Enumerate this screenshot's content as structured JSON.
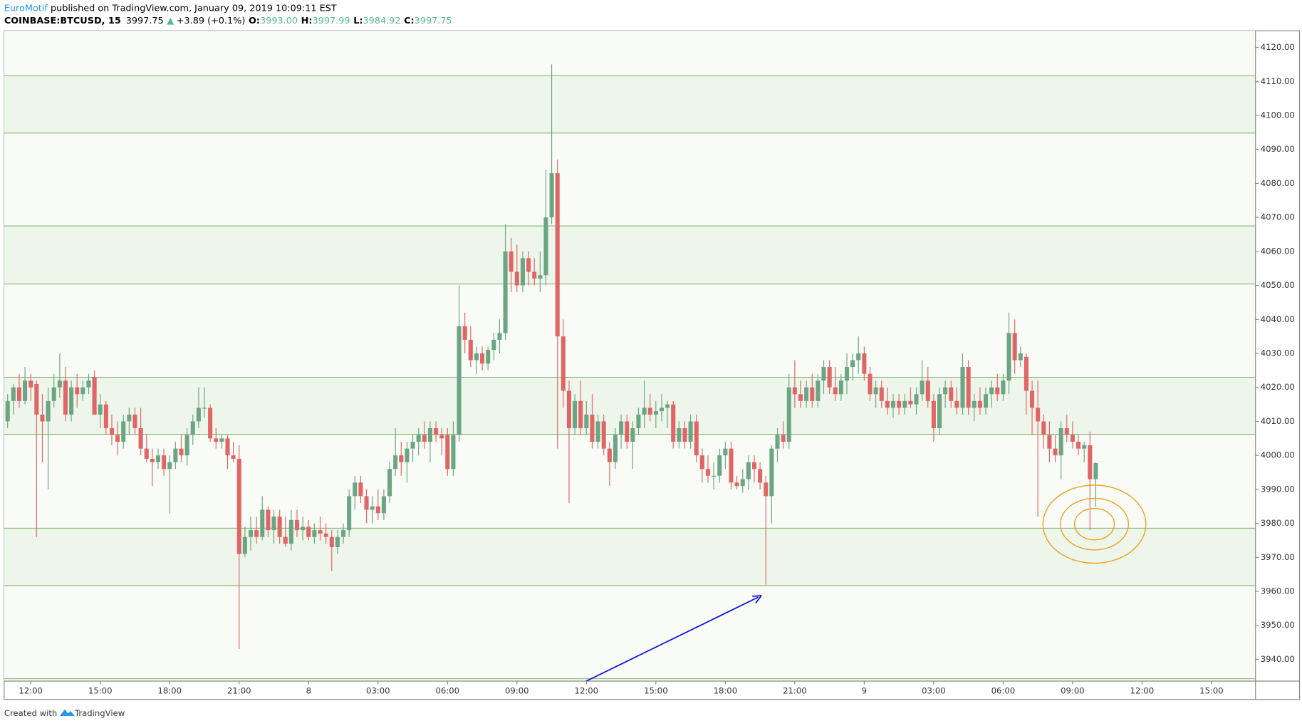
{
  "header": {
    "author": "EuroMotif",
    "published": "published on TradingView.com, January 09, 2019 10:09:11 EST",
    "symbol": "COINBASE:BTCUSD, 15",
    "last": "3997.75",
    "change": "+3.89 (+0.1%)",
    "ohlc": [
      {
        "key": "O:",
        "value": "3993.00"
      },
      {
        "key": "H:",
        "value": "3997.99"
      },
      {
        "key": "L:",
        "value": "3984.92"
      },
      {
        "key": "C:",
        "value": "3997.75"
      }
    ]
  },
  "footer": {
    "created": "Created with",
    "brand": "TradingView"
  },
  "chart_data": {
    "type": "candlestick",
    "up_color": "#6ba583",
    "down_color": "#e06666",
    "level_color": "#6aa84f",
    "zone_color": "#eef5ea",
    "xlim": [
      -0.6,
      215.6
    ],
    "ylim": [
      3933.6,
      4124.9
    ],
    "xticks": [
      {
        "value": 4,
        "label": "12:00"
      },
      {
        "value": 16,
        "label": "15:00"
      },
      {
        "value": 28,
        "label": "18:00"
      },
      {
        "value": 40,
        "label": "21:00"
      },
      {
        "value": 52,
        "label": "8"
      },
      {
        "value": 64,
        "label": "03:00"
      },
      {
        "value": 76,
        "label": "06:00"
      },
      {
        "value": 88,
        "label": "09:00"
      },
      {
        "value": 100,
        "label": "12:00"
      },
      {
        "value": 112,
        "label": "15:00"
      },
      {
        "value": 124,
        "label": "18:00"
      },
      {
        "value": 136,
        "label": "21:00"
      },
      {
        "value": 148,
        "label": "9"
      },
      {
        "value": 160,
        "label": "03:00"
      },
      {
        "value": 172,
        "label": "06:00"
      },
      {
        "value": 184,
        "label": "09:00"
      },
      {
        "value": 196,
        "label": "12:00"
      },
      {
        "value": 208,
        "label": "15:00"
      }
    ],
    "yticks": [
      {
        "value": 3940,
        "label": "3940.00"
      },
      {
        "value": 3950,
        "label": "3950.00"
      },
      {
        "value": 3960,
        "label": "3960.00"
      },
      {
        "value": 3970,
        "label": "3970.00"
      },
      {
        "value": 3980,
        "label": "3980.00"
      },
      {
        "value": 3990,
        "label": "3990.00"
      },
      {
        "value": 4000,
        "label": "4000.00"
      },
      {
        "value": 4010,
        "label": "4010.00"
      },
      {
        "value": 4020,
        "label": "4020.00"
      },
      {
        "value": 4030,
        "label": "4030.00"
      },
      {
        "value": 4040,
        "label": "4040.00"
      },
      {
        "value": 4050,
        "label": "4050.00"
      },
      {
        "value": 4060,
        "label": "4060.00"
      },
      {
        "value": 4070,
        "label": "4070.00"
      },
      {
        "value": 4080,
        "label": "4080.00"
      },
      {
        "value": 4090,
        "label": "4090.00"
      },
      {
        "value": 4100,
        "label": "4100.00"
      },
      {
        "value": 4110,
        "label": "4110.00"
      },
      {
        "value": 4120,
        "label": "4120.00"
      }
    ],
    "levels": [
      4111.7,
      4094.8,
      4067.5,
      4050.4,
      4023.0,
      4006.2,
      3978.6,
      3961.7,
      3934.3
    ],
    "ohlc": [
      [
        4010,
        4018,
        4008,
        4016
      ],
      [
        4016,
        4021,
        4012,
        4020
      ],
      [
        4020,
        4024,
        4014,
        4016
      ],
      [
        4016,
        4026,
        4015,
        4022
      ],
      [
        4022,
        4024,
        4016,
        4020
      ],
      [
        4021,
        4022,
        3976,
        4012
      ],
      [
        4012,
        4018,
        3998,
        4010
      ],
      [
        4010,
        4020,
        3990,
        4016
      ],
      [
        4016,
        4024,
        4014,
        4020
      ],
      [
        4020,
        4030,
        4017,
        4022
      ],
      [
        4022,
        4026,
        4010,
        4012
      ],
      [
        4012,
        4022,
        4010,
        4020
      ],
      [
        4020,
        4024,
        4014,
        4018
      ],
      [
        4018,
        4022,
        4016,
        4020
      ],
      [
        4020,
        4024,
        4018,
        4022
      ],
      [
        4023,
        4025,
        4012,
        4012
      ],
      [
        4012,
        4018,
        4008,
        4015
      ],
      [
        4015,
        4016,
        4006,
        4008
      ],
      [
        4008,
        4012,
        4003,
        4006
      ],
      [
        4006,
        4010,
        4000,
        4004
      ],
      [
        4004,
        4012,
        4002,
        4010
      ],
      [
        4010,
        4014,
        4006,
        4012
      ],
      [
        4012,
        4014,
        4006,
        4008
      ],
      [
        4008,
        4014,
        4000,
        4002
      ],
      [
        4002,
        4006,
        3998,
        3999
      ],
      [
        3999,
        4002,
        3991,
        3998
      ],
      [
        3998,
        4002,
        3996,
        4000
      ],
      [
        4000,
        4002,
        3994,
        3996
      ],
      [
        3996,
        4000,
        3983,
        3998
      ],
      [
        3998,
        4004,
        3996,
        4002
      ],
      [
        4002,
        4006,
        3998,
        4000
      ],
      [
        4000,
        4008,
        3997,
        4006
      ],
      [
        4006,
        4012,
        4003,
        4010
      ],
      [
        4010,
        4020,
        4008,
        4014
      ],
      [
        4014,
        4020,
        4011,
        4014
      ],
      [
        4014,
        4015,
        4004,
        4005
      ],
      [
        4005,
        4008,
        4002,
        4004
      ],
      [
        4004,
        4006,
        4002,
        4005
      ],
      [
        4005,
        4006,
        3996,
        4000
      ],
      [
        4000,
        4004,
        3998,
        3999
      ],
      [
        3999,
        4003,
        3943,
        3971
      ],
      [
        3971,
        3979,
        3970,
        3976
      ],
      [
        3976,
        3982,
        3972,
        3978
      ],
      [
        3978,
        3982,
        3974,
        3976
      ],
      [
        3976,
        3988,
        3975,
        3984
      ],
      [
        3984,
        3985,
        3976,
        3978
      ],
      [
        3978,
        3984,
        3974,
        3982
      ],
      [
        3982,
        3984,
        3974,
        3976
      ],
      [
        3976,
        3982,
        3973,
        3974
      ],
      [
        3974,
        3984,
        3972,
        3981
      ],
      [
        3981,
        3984,
        3976,
        3978
      ],
      [
        3978,
        3982,
        3975,
        3979
      ],
      [
        3979,
        3981,
        3975,
        3976
      ],
      [
        3976,
        3980,
        3974,
        3978
      ],
      [
        3978,
        3982,
        3975,
        3977
      ],
      [
        3977,
        3980,
        3974,
        3976
      ],
      [
        3976,
        3978,
        3966,
        3973
      ],
      [
        3973,
        3978,
        3971,
        3976
      ],
      [
        3976,
        3980,
        3974,
        3978
      ],
      [
        3978,
        3990,
        3976,
        3988
      ],
      [
        3988,
        3994,
        3984,
        3992
      ],
      [
        3992,
        3994,
        3986,
        3988
      ],
      [
        3988,
        3990,
        3980,
        3984
      ],
      [
        3984,
        3988,
        3980,
        3985
      ],
      [
        3985,
        3990,
        3981,
        3983
      ],
      [
        3983,
        3990,
        3981,
        3988
      ],
      [
        3988,
        3998,
        3986,
        3996
      ],
      [
        3996,
        4008,
        3994,
        4000
      ],
      [
        4000,
        4004,
        3994,
        3998
      ],
      [
        3998,
        4004,
        3992,
        4002
      ],
      [
        4002,
        4006,
        3998,
        4004
      ],
      [
        4004,
        4008,
        4000,
        4006
      ],
      [
        4006,
        4010,
        4002,
        4004
      ],
      [
        4004,
        4010,
        3998,
        4008
      ],
      [
        4008,
        4010,
        4004,
        4006
      ],
      [
        4006,
        4008,
        4000,
        4005
      ],
      [
        4006,
        4008,
        3994,
        3996
      ],
      [
        3996,
        4010,
        3994,
        4006
      ],
      [
        4006,
        4050,
        4004,
        4038
      ],
      [
        4038,
        4042,
        4030,
        4034
      ],
      [
        4034,
        4038,
        4026,
        4028
      ],
      [
        4028,
        4032,
        4024,
        4030
      ],
      [
        4030,
        4032,
        4025,
        4027
      ],
      [
        4027,
        4032,
        4025,
        4031
      ],
      [
        4031,
        4036,
        4028,
        4034
      ],
      [
        4034,
        4040,
        4030,
        4036
      ],
      [
        4036,
        4068,
        4034,
        4060
      ],
      [
        4060,
        4064,
        4048,
        4054
      ],
      [
        4054,
        4062,
        4048,
        4050
      ],
      [
        4050,
        4060,
        4048,
        4058
      ],
      [
        4058,
        4060,
        4050,
        4054
      ],
      [
        4054,
        4058,
        4050,
        4052
      ],
      [
        4052,
        4060,
        4048,
        4053
      ],
      [
        4053,
        4084,
        4050,
        4070
      ],
      [
        4070,
        4115,
        4068,
        4083
      ],
      [
        4083,
        4087,
        4002,
        4035
      ],
      [
        4035,
        4040,
        4014,
        4019
      ],
      [
        4019,
        4022,
        3986,
        4008
      ],
      [
        4008,
        4018,
        4006,
        4016
      ],
      [
        4016,
        4022,
        4006,
        4008
      ],
      [
        4008,
        4016,
        4006,
        4012
      ],
      [
        4012,
        4018,
        4002,
        4004
      ],
      [
        4004,
        4012,
        4002,
        4010
      ],
      [
        4010,
        4012,
        4000,
        4002
      ],
      [
        4002,
        4004,
        3991,
        3998
      ],
      [
        3998,
        4008,
        3996,
        4006
      ],
      [
        4006,
        4012,
        4002,
        4010
      ],
      [
        4010,
        4012,
        4002,
        4004
      ],
      [
        4004,
        4010,
        3996,
        4008
      ],
      [
        4008,
        4014,
        4006,
        4012
      ],
      [
        4012,
        4022,
        4008,
        4014
      ],
      [
        4014,
        4018,
        4010,
        4012
      ],
      [
        4012,
        4016,
        4008,
        4013
      ],
      [
        4013,
        4018,
        4010,
        4014
      ],
      [
        4014,
        4016,
        4008,
        4015
      ],
      [
        4015,
        4016,
        4002,
        4004
      ],
      [
        4004,
        4010,
        4002,
        4008
      ],
      [
        4008,
        4010,
        4002,
        4004
      ],
      [
        4004,
        4012,
        4002,
        4010
      ],
      [
        4010,
        4012,
        3998,
        4000
      ],
      [
        4000,
        4002,
        3992,
        3996
      ],
      [
        3996,
        4000,
        3992,
        3994
      ],
      [
        3994,
        3998,
        3990,
        3994
      ],
      [
        3994,
        4002,
        3992,
        4000
      ],
      [
        4000,
        4004,
        3996,
        4002
      ],
      [
        4002,
        4004,
        3990,
        3992
      ],
      [
        3992,
        3994,
        3990,
        3991
      ],
      [
        3991,
        3996,
        3989,
        3993
      ],
      [
        3993,
        4000,
        3990,
        3998
      ],
      [
        3998,
        4000,
        3992,
        3996
      ],
      [
        3996,
        3998,
        3990,
        3992
      ],
      [
        3992,
        3994,
        3962,
        3988
      ],
      [
        3988,
        4003,
        3980,
        4002
      ],
      [
        4002,
        4008,
        3998,
        4006
      ],
      [
        4006,
        4010,
        4002,
        4004
      ],
      [
        4004,
        4024,
        4002,
        4020
      ],
      [
        4020,
        4028,
        4014,
        4018
      ],
      [
        4018,
        4022,
        4014,
        4016
      ],
      [
        4016,
        4022,
        4014,
        4020
      ],
      [
        4020,
        4024,
        4014,
        4016
      ],
      [
        4016,
        4024,
        4014,
        4022
      ],
      [
        4022,
        4028,
        4018,
        4026
      ],
      [
        4026,
        4028,
        4018,
        4020
      ],
      [
        4020,
        4026,
        4016,
        4018
      ],
      [
        4018,
        4024,
        4016,
        4022
      ],
      [
        4022,
        4030,
        4018,
        4026
      ],
      [
        4026,
        4030,
        4022,
        4028
      ],
      [
        4028,
        4035,
        4024,
        4030
      ],
      [
        4030,
        4032,
        4022,
        4024
      ],
      [
        4024,
        4026,
        4016,
        4018
      ],
      [
        4018,
        4022,
        4014,
        4020
      ],
      [
        4020,
        4022,
        4014,
        4016
      ],
      [
        4016,
        4020,
        4012,
        4014
      ],
      [
        4014,
        4018,
        4011,
        4016
      ],
      [
        4016,
        4018,
        4012,
        4014
      ],
      [
        4014,
        4018,
        4012,
        4016
      ],
      [
        4016,
        4020,
        4014,
        4015
      ],
      [
        4015,
        4020,
        4012,
        4018
      ],
      [
        4018,
        4028,
        4016,
        4022
      ],
      [
        4022,
        4026,
        4014,
        4016
      ],
      [
        4016,
        4018,
        4004,
        4008
      ],
      [
        4008,
        4020,
        4006,
        4018
      ],
      [
        4018,
        4022,
        4014,
        4020
      ],
      [
        4020,
        4022,
        4014,
        4016
      ],
      [
        4016,
        4020,
        4012,
        4014
      ],
      [
        4014,
        4030,
        4012,
        4026
      ],
      [
        4026,
        4028,
        4012,
        4014
      ],
      [
        4014,
        4018,
        4010,
        4016
      ],
      [
        4016,
        4020,
        4012,
        4014
      ],
      [
        4014,
        4020,
        4012,
        4018
      ],
      [
        4018,
        4022,
        4014,
        4020
      ],
      [
        4020,
        4024,
        4016,
        4018
      ],
      [
        4018,
        4024,
        4016,
        4022
      ],
      [
        4022,
        4042,
        4018,
        4036
      ],
      [
        4036,
        4040,
        4024,
        4028
      ],
      [
        4028,
        4032,
        4026,
        4030
      ],
      [
        4029,
        4030,
        4012,
        4019
      ],
      [
        4019,
        4022,
        4006,
        4014
      ],
      [
        4014,
        4022,
        3982,
        4010
      ],
      [
        4010,
        4012,
        4002,
        4006
      ],
      [
        4006,
        4010,
        3998,
        4002
      ],
      [
        4002,
        4006,
        3998,
        4000
      ],
      [
        4000,
        4010,
        3993,
        4008
      ],
      [
        4008,
        4012,
        4004,
        4006
      ],
      [
        4006,
        4010,
        4002,
        4004
      ],
      [
        4004,
        4006,
        4000,
        4002
      ],
      [
        4002,
        4004,
        3998,
        4003
      ],
      [
        4003,
        4007,
        3978,
        3993
      ],
      [
        3993,
        3997.99,
        3984.92,
        3997.75
      ]
    ]
  }
}
